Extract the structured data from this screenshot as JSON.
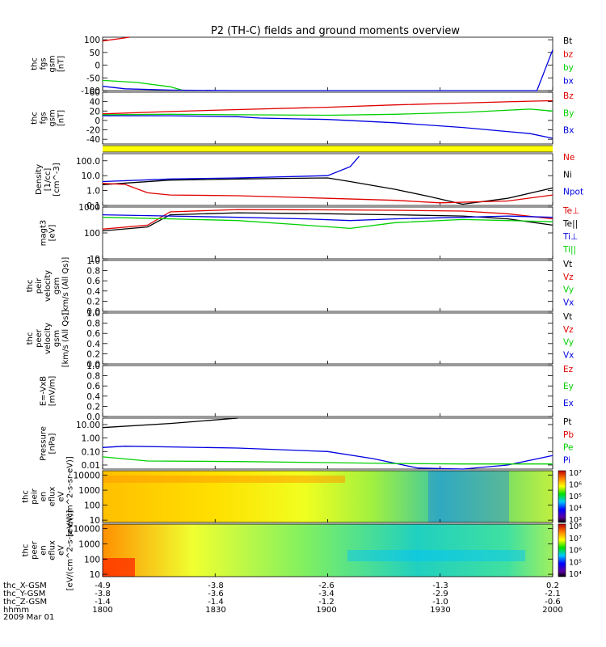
{
  "title": "P2 (TH-C) fields and ground moments overview",
  "date_label": "2009 Mar 01",
  "colors": {
    "black": "#000000",
    "red": "#e00000",
    "green": "#00d000",
    "blue": "#0000e0",
    "yellow": "#ffff00"
  },
  "chart_data": [
    {
      "type": "line",
      "ylabel": [
        "thc",
        "fgs",
        "gsm",
        "[nT]"
      ],
      "ylim": [
        -100,
        110
      ],
      "yticks": [
        "100",
        "50",
        "0",
        "-50",
        "-100"
      ],
      "legend": [
        {
          "name": "Bt",
          "color": "black"
        },
        {
          "name": "bz",
          "color": "red"
        },
        {
          "name": "by",
          "color": "green"
        },
        {
          "name": "bx",
          "color": "blue"
        }
      ],
      "series": [
        {
          "name": "bz",
          "color": "red",
          "x": [
            1800,
            1812
          ],
          "y": [
            95,
            110
          ]
        },
        {
          "name": "by",
          "color": "green",
          "x": [
            1800,
            1815,
            1830,
            1836
          ],
          "y": [
            -60,
            -68,
            -85,
            -100
          ]
        },
        {
          "name": "bx",
          "color": "blue",
          "x": [
            1800,
            1810,
            1830,
            1860,
            1900,
            1950,
            1993,
            2000
          ],
          "y": [
            -83,
            -93,
            -98,
            -100,
            -101,
            -102,
            -102,
            60
          ]
        }
      ]
    },
    {
      "type": "line",
      "ylabel": [
        "thc",
        "fgs",
        "gsm",
        "[nT]"
      ],
      "ylim": [
        -50,
        60
      ],
      "yticks": [
        "60",
        "40",
        "20",
        "0",
        "-20",
        "-40"
      ],
      "legend": [
        {
          "name": "Bz",
          "color": "red"
        },
        {
          "name": "By",
          "color": "green"
        },
        {
          "name": "Bx",
          "color": "blue"
        }
      ],
      "series": [
        {
          "name": "Bz",
          "color": "red",
          "x": [
            1800,
            1830,
            1860,
            1900,
            1930,
            1960,
            1990,
            2000
          ],
          "y": [
            14,
            19,
            23,
            28,
            33,
            37,
            41,
            42
          ]
        },
        {
          "name": "By",
          "color": "green",
          "x": [
            1800,
            1830,
            1860,
            1900,
            1930,
            1960,
            1990,
            2000
          ],
          "y": [
            12,
            13,
            12,
            11,
            13,
            17,
            24,
            20
          ]
        },
        {
          "name": "Bx",
          "color": "blue",
          "x": [
            1800,
            1830,
            1860,
            1870,
            1900,
            1930,
            1960,
            1990,
            2000
          ],
          "y": [
            10,
            10,
            8,
            5,
            2,
            -5,
            -15,
            -28,
            -38
          ]
        }
      ]
    },
    {
      "type": "line",
      "ylog": true,
      "ylabel": [
        "Density",
        "[1/cc]",
        "[cm^-3]"
      ],
      "ylim": [
        0.1,
        300
      ],
      "yticks": [
        "100.0",
        "10.0",
        "1.0",
        "0.1"
      ],
      "legend": [
        {
          "name": "Ne",
          "color": "red"
        },
        {
          "name": "Ni",
          "color": "black"
        },
        {
          "name": "Npot",
          "color": "blue"
        }
      ],
      "series": [
        {
          "name": "Ni",
          "color": "black",
          "x": [
            1800,
            1830,
            1860,
            1900,
            1910,
            1930,
            1945,
            1960,
            1980,
            2000
          ],
          "y": [
            2.5,
            5,
            6,
            7,
            4,
            1.2,
            0.4,
            0.12,
            0.3,
            1.5
          ]
        },
        {
          "name": "Ne",
          "color": "red",
          "x": [
            1800,
            1810,
            1820,
            1830,
            1860,
            1900,
            1930,
            1950,
            1980,
            2000
          ],
          "y": [
            3,
            2.6,
            0.7,
            0.5,
            0.45,
            0.3,
            0.22,
            0.15,
            0.2,
            0.5
          ]
        },
        {
          "name": "Npot",
          "color": "blue",
          "x": [
            1800,
            1830,
            1860,
            1900,
            1910,
            1914
          ],
          "y": [
            4,
            6,
            7,
            10,
            40,
            200
          ]
        }
      ]
    },
    {
      "type": "line",
      "ylog": true,
      "ylabel": [
        "magt3",
        "[eV]"
      ],
      "ylim": [
        10,
        1000
      ],
      "yticks": [
        "1000",
        "100",
        "10"
      ],
      "legend": [
        {
          "name": "Te⊥",
          "color": "red"
        },
        {
          "name": "Te||",
          "color": "black"
        },
        {
          "name": "Ti⊥",
          "color": "blue"
        },
        {
          "name": "Ti||",
          "color": "green"
        }
      ],
      "series": [
        {
          "name": "Te⊥",
          "color": "red",
          "x": [
            1800,
            1820,
            1830,
            1860,
            1900,
            1930,
            1960,
            1980,
            2000
          ],
          "y": [
            140,
            200,
            650,
            800,
            780,
            750,
            700,
            550,
            350
          ]
        },
        {
          "name": "Te||",
          "color": "black",
          "x": [
            1800,
            1820,
            1830,
            1860,
            1900,
            1930,
            1960,
            1980,
            2000
          ],
          "y": [
            120,
            170,
            500,
            600,
            550,
            500,
            450,
            350,
            200
          ]
        },
        {
          "name": "Ti⊥",
          "color": "blue",
          "x": [
            1800,
            1830,
            1860,
            1890,
            1910,
            1930,
            1960,
            1980,
            2000
          ],
          "y": [
            500,
            450,
            400,
            350,
            300,
            350,
            400,
            450,
            400
          ]
        },
        {
          "name": "Ti||",
          "color": "green",
          "x": [
            1800,
            1830,
            1860,
            1890,
            1910,
            1930,
            1960,
            1980,
            2000
          ],
          "y": [
            400,
            350,
            300,
            200,
            150,
            250,
            330,
            300,
            270
          ]
        }
      ]
    },
    {
      "type": "line",
      "ylabel": [
        "thc",
        "peir",
        "velocity",
        "gsm",
        "[km/s (All Qs)]"
      ],
      "ylim": [
        0,
        1
      ],
      "yticks": [
        "1.0",
        "0.8",
        "0.6",
        "0.4",
        "0.2",
        "0.0"
      ],
      "legend": [
        {
          "name": "Vt",
          "color": "black"
        },
        {
          "name": "Vz",
          "color": "red"
        },
        {
          "name": "Vy",
          "color": "green"
        },
        {
          "name": "Vx",
          "color": "blue"
        }
      ],
      "series": []
    },
    {
      "type": "line",
      "ylabel": [
        "thc",
        "peer",
        "velocity",
        "gsm",
        "[km/s (All Qs)]"
      ],
      "ylim": [
        0,
        1
      ],
      "yticks": [
        "1.0",
        "0.8",
        "0.6",
        "0.4",
        "0.2",
        "0.0"
      ],
      "legend": [
        {
          "name": "Vt",
          "color": "black"
        },
        {
          "name": "Vz",
          "color": "red"
        },
        {
          "name": "Vy",
          "color": "green"
        },
        {
          "name": "Vx",
          "color": "blue"
        }
      ],
      "series": []
    },
    {
      "type": "line",
      "ylabel": [
        "E=-VxB",
        "[mV/m]"
      ],
      "ylim": [
        0,
        1
      ],
      "yticks": [
        "1.0",
        "0.8",
        "0.6",
        "0.4",
        "0.2",
        "0.0"
      ],
      "legend": [
        {
          "name": "Ez",
          "color": "red"
        },
        {
          "name": "Ey",
          "color": "green"
        },
        {
          "name": "Ex",
          "color": "blue"
        }
      ],
      "series": []
    },
    {
      "type": "line",
      "ylog": true,
      "ylabel": [
        "Pressure",
        "[nPa]"
      ],
      "ylim": [
        0.005,
        30
      ],
      "yticks": [
        "10.00",
        "1.00",
        "0.10",
        "0.01"
      ],
      "legend": [
        {
          "name": "Pt",
          "color": "black"
        },
        {
          "name": "Pb",
          "color": "red"
        },
        {
          "name": "Pe",
          "color": "green"
        },
        {
          "name": "Pi",
          "color": "blue"
        }
      ],
      "series": [
        {
          "name": "Pt",
          "color": "black",
          "x": [
            1800,
            1830,
            1860
          ],
          "y": [
            6,
            12,
            30
          ]
        },
        {
          "name": "Pi",
          "color": "blue",
          "x": [
            1800,
            1810,
            1830,
            1860,
            1900,
            1920,
            1940,
            1960,
            1980,
            2000
          ],
          "y": [
            0.2,
            0.25,
            0.22,
            0.18,
            0.1,
            0.03,
            0.006,
            0.004,
            0.01,
            0.05
          ]
        },
        {
          "name": "Pe",
          "color": "green",
          "x": [
            1800,
            1820,
            1860,
            1900,
            1930,
            1960,
            2000
          ],
          "y": [
            0.04,
            0.02,
            0.018,
            0.015,
            0.013,
            0.012,
            0.012
          ]
        }
      ]
    },
    {
      "type": "heatmap",
      "ylog": true,
      "ylabel": [
        "thc",
        "peir",
        "en",
        "eflux",
        "eV",
        "[eV/(cm^2-s-sr-eV)]"
      ],
      "ylim": [
        7,
        20000
      ],
      "yticks": [
        "10000",
        "1000",
        "100",
        "10"
      ],
      "colorbar": [
        "10⁷",
        "10⁶",
        "10⁵",
        "10⁴",
        "10³"
      ]
    },
    {
      "type": "heatmap",
      "ylog": true,
      "ylabel": [
        "thc",
        "peer",
        "en",
        "eflux",
        "eV",
        "[eV/(cm^2-s-sr-eV)]"
      ],
      "ylim": [
        7,
        20000
      ],
      "yticks": [
        "10000",
        "1000",
        "100",
        "10"
      ],
      "colorbar": [
        "10⁸",
        "10⁷",
        "10⁶",
        "10⁵",
        "10⁴"
      ]
    }
  ],
  "x_axis": {
    "range": [
      1800,
      2000
    ],
    "rows": [
      {
        "label": "thc_X-GSM",
        "ticks": [
          "-4.9",
          "-3.8",
          "-2.6",
          "-1.3",
          "0.2"
        ]
      },
      {
        "label": "thc_Y-GSM",
        "ticks": [
          "-3.8",
          "-3.6",
          "-3.4",
          "-2.9",
          "-2.1"
        ]
      },
      {
        "label": "thc_Z-GSM",
        "ticks": [
          "-1.4",
          "-1.4",
          "-1.2",
          "-1.0",
          "-0.6"
        ]
      },
      {
        "label": "hhmm",
        "ticks": [
          "1800",
          "1830",
          "1900",
          "1930",
          "2000"
        ]
      }
    ]
  }
}
